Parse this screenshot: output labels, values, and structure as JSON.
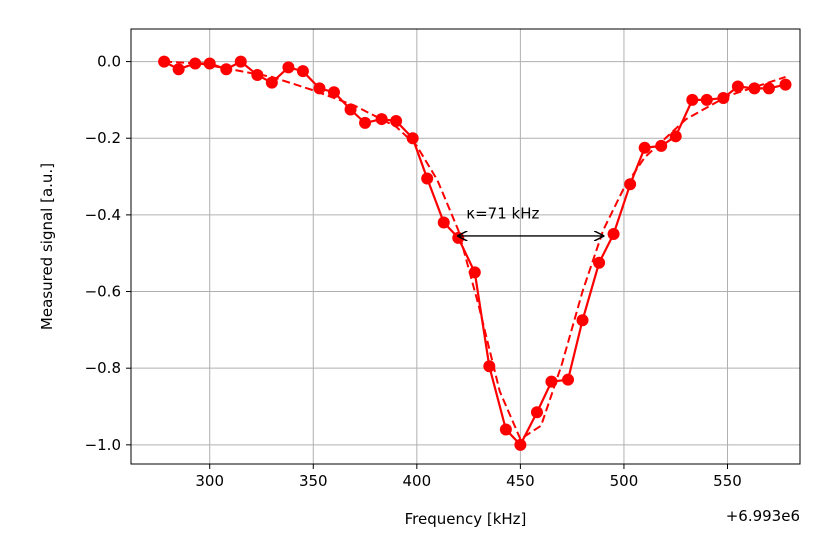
{
  "chart_data": {
    "type": "line",
    "xlabel": "Frequency [kHz]",
    "ylabel": "Measured signal [a.u.]",
    "x_offset_label": "+6.993e6",
    "xlim": [
      262,
      585
    ],
    "ylim": [
      -1.05,
      0.085
    ],
    "xticks": [
      300,
      350,
      400,
      450,
      500,
      550
    ],
    "xtick_labels": [
      "300",
      "350",
      "400",
      "450",
      "500",
      "550"
    ],
    "yticks": [
      0.0,
      -0.2,
      -0.4,
      -0.6,
      -0.8,
      -1.0
    ],
    "ytick_labels": [
      "0.0",
      "−0.2",
      "−0.4",
      "−0.6",
      "−0.8",
      "−1.0"
    ],
    "grid": true,
    "colors": {
      "data": "#ff0000",
      "annotation": "#000000",
      "grid": "#b0b0b0"
    },
    "series": [
      {
        "style": "solid-line-with-markers",
        "x": [
          278,
          285,
          293,
          300,
          308,
          315,
          323,
          330,
          338,
          345,
          353,
          360,
          368,
          375,
          383,
          390,
          398,
          405,
          413,
          420,
          428,
          435,
          443,
          450,
          458,
          465,
          473,
          480,
          488,
          495,
          503,
          510,
          518,
          525,
          533,
          540,
          548,
          555,
          563,
          570,
          578
        ],
        "y": [
          0.0,
          -0.02,
          -0.005,
          -0.005,
          -0.02,
          0.0,
          -0.035,
          -0.055,
          -0.015,
          -0.025,
          -0.07,
          -0.08,
          -0.125,
          -0.16,
          -0.15,
          -0.155,
          -0.2,
          -0.305,
          -0.42,
          -0.46,
          -0.55,
          -0.795,
          -0.96,
          -1.0,
          -0.915,
          -0.835,
          -0.83,
          -0.675,
          -0.525,
          -0.45,
          -0.32,
          -0.225,
          -0.22,
          -0.195,
          -0.1,
          -0.1,
          -0.095,
          -0.065,
          -0.07,
          -0.07,
          -0.06
        ]
      },
      {
        "style": "dashed-fit",
        "x": [
          278,
          295,
          310,
          330,
          350,
          370,
          390,
          400,
          410,
          420,
          430,
          440,
          450,
          460,
          470,
          480,
          490,
          500,
          510,
          530,
          550,
          578
        ],
        "y": [
          0.0,
          -0.005,
          -0.02,
          -0.04,
          -0.075,
          -0.115,
          -0.17,
          -0.22,
          -0.31,
          -0.44,
          -0.64,
          -0.86,
          -0.985,
          -0.95,
          -0.79,
          -0.6,
          -0.44,
          -0.33,
          -0.25,
          -0.15,
          -0.09,
          -0.04
        ]
      }
    ],
    "annotations": [
      {
        "text": "κ=71 kHz",
        "arrow": {
          "x1": 420,
          "x2": 490,
          "y": -0.455
        },
        "text_at": {
          "x": 420,
          "y": -0.41
        }
      }
    ]
  }
}
